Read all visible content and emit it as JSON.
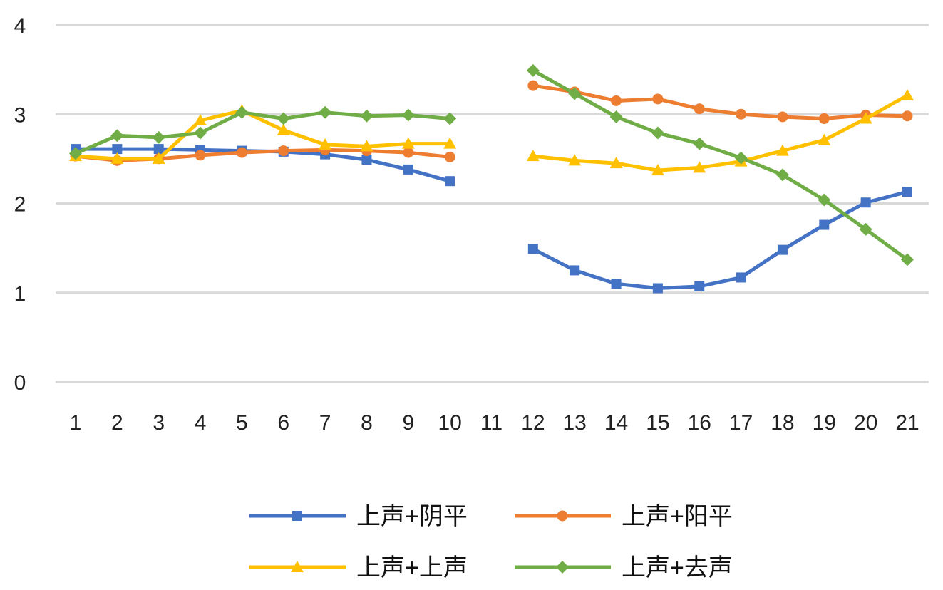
{
  "chart_data": {
    "type": "line",
    "title": "",
    "xlabel": "",
    "ylabel": "",
    "ylim": [
      0,
      4
    ],
    "yticks": [
      0,
      1,
      2,
      3,
      4
    ],
    "grid": true,
    "legend_position": "bottom",
    "categories": [
      "1",
      "2",
      "3",
      "4",
      "5",
      "6",
      "7",
      "8",
      "9",
      "10",
      "11",
      "12",
      "13",
      "14",
      "15",
      "16",
      "17",
      "18",
      "19",
      "20",
      "21"
    ],
    "series": [
      {
        "name": "上声+阴平",
        "color": "#4472C4",
        "marker": "square",
        "values": [
          2.61,
          2.61,
          2.61,
          2.6,
          2.59,
          2.58,
          2.55,
          2.49,
          2.38,
          2.25,
          null,
          1.49,
          1.25,
          1.1,
          1.05,
          1.07,
          1.17,
          1.48,
          1.76,
          2.01,
          2.13
        ]
      },
      {
        "name": "上声+阳平",
        "color": "#ED7D31",
        "marker": "circle",
        "values": [
          2.53,
          2.48,
          2.5,
          2.54,
          2.57,
          2.59,
          2.6,
          2.59,
          2.57,
          2.52,
          null,
          3.32,
          3.25,
          3.15,
          3.17,
          3.06,
          3.0,
          2.97,
          2.95,
          2.99,
          2.98
        ]
      },
      {
        "name": "上声+上声",
        "color": "#FFC000",
        "marker": "triangle",
        "values": [
          2.53,
          2.5,
          2.5,
          2.93,
          3.04,
          2.82,
          2.66,
          2.64,
          2.67,
          2.67,
          null,
          2.53,
          2.48,
          2.45,
          2.37,
          2.4,
          2.47,
          2.59,
          2.71,
          2.95,
          3.21
        ]
      },
      {
        "name": "上声+去声",
        "color": "#70AD47",
        "marker": "diamond",
        "values": [
          2.56,
          2.76,
          2.74,
          2.79,
          3.02,
          2.95,
          3.02,
          2.98,
          2.99,
          2.95,
          null,
          3.49,
          3.23,
          2.97,
          2.79,
          2.67,
          2.51,
          2.32,
          2.04,
          1.71,
          1.37
        ]
      }
    ]
  }
}
